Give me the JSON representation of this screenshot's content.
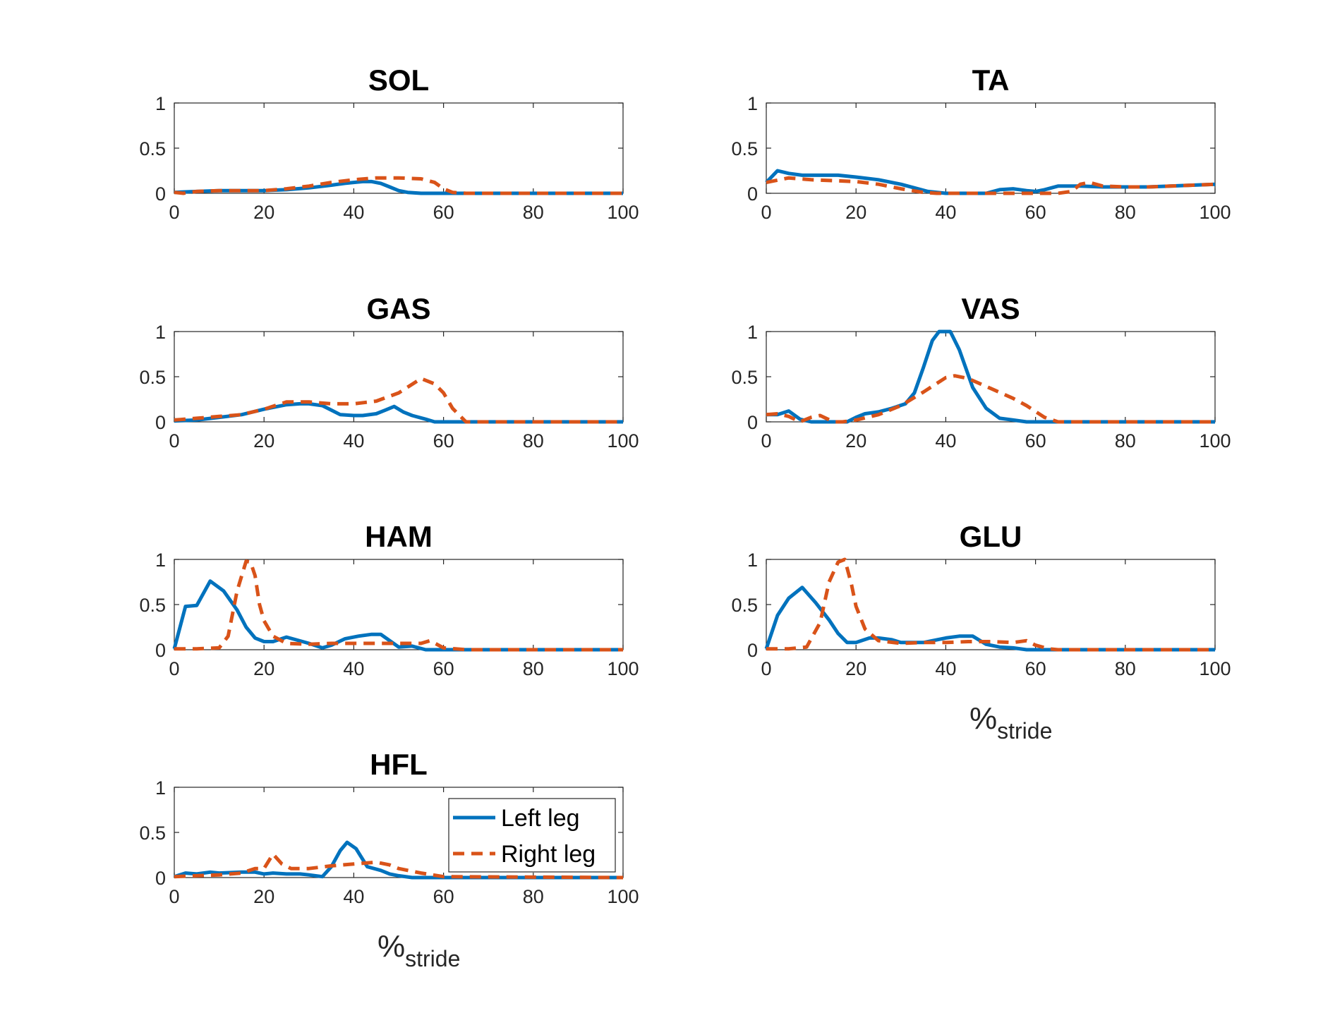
{
  "colors": {
    "left": "#0072BD",
    "right": "#D95319",
    "axis": "#262626"
  },
  "legend": {
    "items": [
      "Left leg",
      "Right leg"
    ],
    "placement": "inside-top-right",
    "panel": "HFL"
  },
  "xlabel": {
    "main": "%",
    "sub": "stride"
  },
  "chart_data": [
    {
      "type": "line",
      "title": "SOL",
      "xlim": [
        0,
        100
      ],
      "ylim": [
        0,
        1
      ],
      "xticks": [
        0,
        20,
        40,
        60,
        80,
        100
      ],
      "yticks": [
        0,
        0.5,
        1
      ],
      "xlabel": "",
      "series": [
        {
          "name": "Left leg",
          "style": "solid",
          "x": [
            0,
            5,
            10,
            15,
            20,
            25,
            30,
            35,
            38,
            42,
            44,
            46,
            48,
            50,
            52,
            55,
            60,
            100
          ],
          "y": [
            0.01,
            0.02,
            0.03,
            0.03,
            0.03,
            0.04,
            0.06,
            0.09,
            0.11,
            0.13,
            0.13,
            0.11,
            0.07,
            0.03,
            0.01,
            0,
            0,
            0
          ]
        },
        {
          "name": "Right leg",
          "style": "dashed",
          "x": [
            0,
            2,
            5,
            10,
            15,
            20,
            25,
            30,
            35,
            40,
            45,
            50,
            55,
            58,
            60,
            62,
            65,
            100
          ],
          "y": [
            0.01,
            0.0,
            0.02,
            0.03,
            0.03,
            0.03,
            0.05,
            0.08,
            0.12,
            0.15,
            0.17,
            0.17,
            0.16,
            0.12,
            0.05,
            0.01,
            0,
            0
          ]
        }
      ]
    },
    {
      "type": "line",
      "title": "TA",
      "xlim": [
        0,
        100
      ],
      "ylim": [
        0,
        1
      ],
      "xticks": [
        0,
        20,
        40,
        60,
        80,
        100
      ],
      "yticks": [
        0,
        0.5,
        1
      ],
      "xlabel": "",
      "series": [
        {
          "name": "Left leg",
          "style": "solid",
          "x": [
            0,
            2.5,
            5,
            8,
            12,
            16,
            20,
            25,
            30,
            33,
            36,
            40,
            45,
            49,
            52,
            55,
            58,
            60,
            62,
            65,
            70,
            75,
            80,
            85,
            90,
            95,
            100
          ],
          "y": [
            0.12,
            0.25,
            0.22,
            0.2,
            0.2,
            0.2,
            0.18,
            0.15,
            0.1,
            0.06,
            0.02,
            0,
            0,
            0,
            0.04,
            0.05,
            0.03,
            0.02,
            0.04,
            0.08,
            0.08,
            0.07,
            0.07,
            0.07,
            0.08,
            0.09,
            0.1
          ]
        },
        {
          "name": "Right leg",
          "style": "dashed",
          "x": [
            0,
            5,
            10,
            15,
            20,
            25,
            30,
            35,
            38,
            40,
            45,
            50,
            55,
            60,
            65,
            68,
            70,
            72,
            75,
            80,
            85,
            90,
            95,
            100
          ],
          "y": [
            0.12,
            0.17,
            0.15,
            0.14,
            0.13,
            0.1,
            0.05,
            0.01,
            0,
            0,
            0,
            0,
            0,
            0,
            0,
            0.02,
            0.1,
            0.12,
            0.08,
            0.07,
            0.07,
            0.08,
            0.09,
            0.1
          ]
        }
      ]
    },
    {
      "type": "line",
      "title": "GAS",
      "xlim": [
        0,
        100
      ],
      "ylim": [
        0,
        1
      ],
      "xticks": [
        0,
        20,
        40,
        60,
        80,
        100
      ],
      "yticks": [
        0,
        0.5,
        1
      ],
      "xlabel": "",
      "series": [
        {
          "name": "Left leg",
          "style": "solid",
          "x": [
            0,
            5,
            10,
            15,
            20,
            25,
            28,
            30,
            33,
            35,
            37,
            40,
            42,
            45,
            47,
            49,
            51,
            53,
            56,
            58,
            60,
            100
          ],
          "y": [
            0.01,
            0.02,
            0.05,
            0.08,
            0.14,
            0.19,
            0.2,
            0.2,
            0.18,
            0.13,
            0.08,
            0.07,
            0.07,
            0.09,
            0.13,
            0.17,
            0.11,
            0.07,
            0.03,
            0,
            0,
            0
          ]
        },
        {
          "name": "Right leg",
          "style": "dashed",
          "x": [
            0,
            5,
            10,
            15,
            20,
            25,
            30,
            35,
            40,
            45,
            50,
            55,
            58,
            60,
            62,
            65,
            100
          ],
          "y": [
            0.02,
            0.04,
            0.06,
            0.08,
            0.14,
            0.22,
            0.22,
            0.2,
            0.2,
            0.23,
            0.32,
            0.48,
            0.42,
            0.32,
            0.15,
            0,
            0
          ]
        }
      ]
    },
    {
      "type": "line",
      "title": "VAS",
      "xlim": [
        0,
        100
      ],
      "ylim": [
        0,
        1
      ],
      "xticks": [
        0,
        20,
        40,
        60,
        80,
        100
      ],
      "yticks": [
        0,
        0.5,
        1
      ],
      "xlabel": "",
      "series": [
        {
          "name": "Left leg",
          "style": "solid",
          "x": [
            0,
            2.5,
            5,
            7.5,
            10,
            15,
            18,
            20,
            22,
            25,
            28,
            31,
            33,
            35,
            37,
            38.5,
            41,
            43,
            46,
            49,
            52,
            55,
            58,
            60,
            100
          ],
          "y": [
            0.08,
            0.08,
            0.12,
            0.03,
            0,
            0,
            0,
            0.05,
            0.09,
            0.11,
            0.15,
            0.2,
            0.32,
            0.6,
            0.9,
            1.0,
            1.0,
            0.8,
            0.38,
            0.15,
            0.04,
            0.02,
            0,
            0,
            0
          ]
        },
        {
          "name": "Right leg",
          "style": "dashed",
          "x": [
            0,
            2.5,
            5,
            7.5,
            10,
            12,
            15,
            17,
            20,
            25,
            30,
            35,
            40,
            42,
            45,
            50,
            55,
            58,
            62,
            65,
            100
          ],
          "y": [
            0.08,
            0.09,
            0.06,
            0.0,
            0.05,
            0.07,
            0.0,
            0.0,
            0.02,
            0.08,
            0.18,
            0.33,
            0.49,
            0.51,
            0.48,
            0.37,
            0.26,
            0.18,
            0.05,
            0,
            0
          ]
        }
      ]
    },
    {
      "type": "line",
      "title": "HAM",
      "xlim": [
        0,
        100
      ],
      "ylim": [
        0,
        1
      ],
      "xticks": [
        0,
        20,
        40,
        60,
        80,
        100
      ],
      "yticks": [
        0,
        0.5,
        1
      ],
      "xlabel": "",
      "series": [
        {
          "name": "Left leg",
          "style": "solid",
          "x": [
            0,
            2.5,
            5,
            8,
            11,
            14,
            16,
            18,
            20,
            22,
            25,
            30,
            33,
            35,
            38,
            41,
            44,
            46,
            48,
            50,
            53,
            56,
            58,
            60,
            100
          ],
          "y": [
            0.01,
            0.48,
            0.49,
            0.76,
            0.65,
            0.44,
            0.25,
            0.13,
            0.09,
            0.09,
            0.14,
            0.07,
            0.02,
            0.05,
            0.12,
            0.15,
            0.17,
            0.17,
            0.1,
            0.03,
            0.04,
            0,
            0,
            0,
            0
          ]
        },
        {
          "name": "Right leg",
          "style": "dashed",
          "x": [
            0,
            5,
            10,
            12,
            14,
            16,
            17,
            18,
            19,
            20,
            22,
            25,
            30,
            35,
            40,
            45,
            50,
            55,
            57,
            60,
            65,
            100
          ],
          "y": [
            0.01,
            0.01,
            0.02,
            0.15,
            0.65,
            0.98,
            0.97,
            0.82,
            0.5,
            0.32,
            0.15,
            0.07,
            0.06,
            0.07,
            0.07,
            0.07,
            0.07,
            0.07,
            0.1,
            0.02,
            0,
            0
          ]
        }
      ]
    },
    {
      "type": "line",
      "title": "GLU",
      "xlim": [
        0,
        100
      ],
      "ylim": [
        0,
        1
      ],
      "xticks": [
        0,
        20,
        40,
        60,
        80,
        100
      ],
      "yticks": [
        0,
        0.5,
        1
      ],
      "xlabel": "%stride",
      "series": [
        {
          "name": "Left leg",
          "style": "solid",
          "x": [
            0,
            2.5,
            5,
            8,
            11,
            14,
            16,
            18,
            20,
            23,
            25,
            28,
            30,
            35,
            40,
            43,
            46,
            49,
            52,
            55,
            58,
            60,
            100
          ],
          "y": [
            0.01,
            0.38,
            0.57,
            0.69,
            0.52,
            0.33,
            0.18,
            0.08,
            0.08,
            0.13,
            0.13,
            0.11,
            0.08,
            0.08,
            0.13,
            0.15,
            0.15,
            0.06,
            0.03,
            0.02,
            0,
            0,
            0
          ]
        },
        {
          "name": "Right leg",
          "style": "dashed",
          "x": [
            0,
            5,
            9,
            12,
            14,
            16,
            17.5,
            19,
            20,
            22,
            25,
            30,
            35,
            40,
            45,
            50,
            55,
            58,
            60,
            63,
            65,
            100
          ],
          "y": [
            0.01,
            0.01,
            0.03,
            0.3,
            0.75,
            0.97,
            1.0,
            0.72,
            0.48,
            0.23,
            0.1,
            0.07,
            0.08,
            0.08,
            0.09,
            0.09,
            0.08,
            0.1,
            0.05,
            0.01,
            0,
            0
          ]
        }
      ]
    },
    {
      "type": "line",
      "title": "HFL",
      "xlim": [
        0,
        100
      ],
      "ylim": [
        0,
        1
      ],
      "xticks": [
        0,
        20,
        40,
        60,
        80,
        100
      ],
      "yticks": [
        0,
        0.5,
        1
      ],
      "xlabel": "%stride",
      "series": [
        {
          "name": "Left leg",
          "style": "solid",
          "x": [
            0,
            2.5,
            5,
            8,
            10,
            15,
            18,
            20,
            22,
            25,
            28,
            30,
            33,
            35,
            37,
            38.5,
            40.5,
            43,
            46,
            48,
            50,
            53,
            55,
            60,
            100
          ],
          "y": [
            0.01,
            0.05,
            0.04,
            0.06,
            0.05,
            0.06,
            0.06,
            0.04,
            0.05,
            0.04,
            0.04,
            0.03,
            0.01,
            0.12,
            0.3,
            0.39,
            0.32,
            0.12,
            0.08,
            0.04,
            0.02,
            0,
            0,
            0,
            0
          ]
        },
        {
          "name": "Right leg",
          "style": "dashed",
          "x": [
            0,
            5,
            10,
            15,
            18,
            20,
            22,
            24,
            26,
            30,
            35,
            40,
            45,
            48,
            50,
            55,
            60,
            100
          ],
          "y": [
            0.01,
            0.02,
            0.03,
            0.05,
            0.1,
            0.1,
            0.26,
            0.15,
            0.1,
            0.1,
            0.13,
            0.15,
            0.17,
            0.14,
            0.1,
            0.05,
            0.01,
            0
          ]
        }
      ]
    }
  ]
}
